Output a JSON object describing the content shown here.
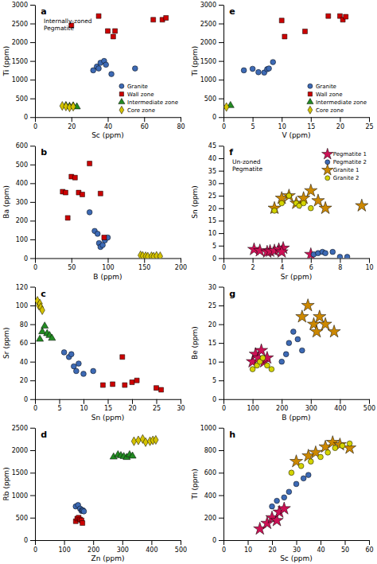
{
  "chart_data": [
    {
      "type": "scatter",
      "title": "a",
      "xlabel": "Sc (ppm)",
      "ylabel": "Ti (ppm)",
      "xlim": [
        0,
        80
      ],
      "ylim": [
        0,
        3000
      ],
      "xticks": [
        0,
        20,
        40,
        60,
        80
      ],
      "yticks": [
        0,
        500,
        1000,
        1500,
        2000,
        2500,
        3000
      ],
      "annotation": "Internally-zoned\nPegmatite",
      "legend": "lower right",
      "series": [
        {
          "name": "Granite",
          "color": "#3d6ab5",
          "marker": "circle",
          "x": [
            32,
            34,
            35,
            36,
            38,
            39,
            42,
            55
          ],
          "values": [
            1250,
            1350,
            1300,
            1450,
            1500,
            1400,
            1150,
            1300
          ]
        },
        {
          "name": "Wall zone",
          "color": "#cc0000",
          "marker": "square",
          "x": [
            20,
            35,
            40,
            43,
            44,
            65,
            70,
            72
          ],
          "values": [
            2450,
            2700,
            2300,
            2150,
            2300,
            2600,
            2600,
            2650
          ]
        },
        {
          "name": "Intermediate zone",
          "color": "#228B22",
          "marker": "triangle",
          "x": [
            17,
            19,
            21,
            23
          ],
          "values": [
            310,
            290,
            300,
            275
          ]
        },
        {
          "name": "Core zone",
          "color": "#d4c200",
          "marker": "diamond",
          "x": [
            15,
            17,
            19,
            21
          ],
          "values": [
            300,
            285,
            260,
            280
          ]
        }
      ]
    },
    {
      "type": "scatter",
      "title": "b",
      "xlabel": "B (ppm)",
      "ylabel": "Ba (ppm)",
      "xlim": [
        0,
        200
      ],
      "ylim": [
        0,
        600
      ],
      "xticks": [
        0,
        50,
        100,
        150,
        200
      ],
      "yticks": [
        0,
        100,
        200,
        300,
        400,
        500,
        600
      ],
      "series": [
        {
          "color": "#3d6ab5",
          "marker": "circle",
          "x": [
            75,
            82,
            86,
            88,
            90,
            93,
            96,
            100
          ],
          "values": [
            245,
            145,
            130,
            80,
            60,
            70,
            95,
            110
          ]
        },
        {
          "color": "#cc0000",
          "marker": "square",
          "x": [
            38,
            42,
            45,
            50,
            55,
            60,
            65,
            75,
            90,
            95
          ],
          "values": [
            355,
            350,
            215,
            435,
            430,
            350,
            340,
            505,
            345,
            110
          ]
        },
        {
          "color": "#d4c200",
          "marker": "diamond",
          "x": [
            145,
            148,
            152,
            155,
            160,
            163,
            167,
            172
          ],
          "values": [
            15,
            12,
            10,
            8,
            10,
            8,
            12,
            10
          ]
        }
      ]
    },
    {
      "type": "scatter",
      "title": "c",
      "xlabel": "Sn (ppm)",
      "ylabel": "Sr (ppm)",
      "xlim": [
        0,
        30
      ],
      "ylim": [
        0,
        120
      ],
      "xticks": [
        0,
        5,
        10,
        15,
        20,
        25,
        30
      ],
      "yticks": [
        0,
        20,
        40,
        60,
        80,
        100,
        120
      ],
      "series": [
        {
          "color": "#3d6ab5",
          "marker": "circle",
          "x": [
            6,
            7,
            7.5,
            8,
            8.5,
            9,
            10,
            12
          ],
          "values": [
            50,
            45,
            48,
            35,
            30,
            38,
            27,
            30
          ]
        },
        {
          "color": "#cc0000",
          "marker": "square",
          "x": [
            14,
            16,
            18,
            18.5,
            20,
            21,
            25,
            26
          ],
          "values": [
            15,
            16,
            45,
            15,
            18,
            20,
            12,
            10
          ]
        },
        {
          "color": "#228B22",
          "marker": "triangle",
          "x": [
            1,
            1.5,
            2,
            2.5,
            3,
            3.5
          ],
          "values": [
            64,
            72,
            78,
            70,
            68,
            65
          ]
        },
        {
          "color": "#d4c200",
          "marker": "diamond",
          "x": [
            0.5,
            0.8,
            1,
            1.2,
            1.5
          ],
          "values": [
            105,
            100,
            102,
            98,
            95
          ]
        }
      ]
    },
    {
      "type": "scatter",
      "title": "d",
      "xlabel": "Zn (ppm)",
      "ylabel": "Rb (ppm)",
      "xlim": [
        0,
        500
      ],
      "ylim": [
        0,
        2500
      ],
      "xticks": [
        0,
        100,
        200,
        300,
        400,
        500
      ],
      "yticks": [
        0,
        500,
        1000,
        1500,
        2000,
        2500
      ],
      "series": [
        {
          "color": "#3d6ab5",
          "marker": "circle",
          "x": [
            140,
            148,
            155,
            160,
            162,
            165,
            168
          ],
          "values": [
            750,
            780,
            700,
            650,
            670,
            660,
            640
          ]
        },
        {
          "color": "#cc0000",
          "marker": "square",
          "x": [
            140,
            145,
            150,
            155,
            160,
            163
          ],
          "values": [
            420,
            480,
            500,
            460,
            440,
            380
          ]
        },
        {
          "color": "#228B22",
          "marker": "triangle",
          "x": [
            270,
            285,
            295,
            305,
            315,
            325,
            335
          ],
          "values": [
            1850,
            1900,
            1880,
            1860,
            1840,
            1900,
            1870
          ]
        },
        {
          "color": "#d4c200",
          "marker": "diamond",
          "x": [
            340,
            355,
            370,
            380,
            395,
            405,
            415
          ],
          "values": [
            2200,
            2220,
            2250,
            2180,
            2200,
            2220,
            2230
          ]
        }
      ]
    },
    {
      "type": "scatter",
      "title": "e",
      "xlabel": "V (ppm)",
      "ylabel": "Ti (ppm)",
      "xlim": [
        0,
        25
      ],
      "ylim": [
        0,
        3000
      ],
      "xticks": [
        0,
        5,
        10,
        15,
        20,
        25
      ],
      "yticks": [
        0,
        500,
        1000,
        1500,
        2000,
        2500,
        3000
      ],
      "legend": "lower right",
      "series": [
        {
          "name": "Granite",
          "color": "#3d6ab5",
          "marker": "circle",
          "x": [
            3.5,
            5,
            6,
            7,
            7.5,
            7.8,
            8.5
          ],
          "values": [
            1250,
            1290,
            1200,
            1190,
            1280,
            1300,
            1470
          ]
        },
        {
          "name": "Wall zone",
          "color": "#cc0000",
          "marker": "square",
          "x": [
            10,
            10.5,
            14,
            18,
            20,
            20.5,
            21
          ],
          "values": [
            2580,
            2150,
            2290,
            2700,
            2700,
            2600,
            2680
          ]
        },
        {
          "name": "Intermediate zone",
          "color": "#228B22",
          "marker": "triangle",
          "x": [
            1.2
          ],
          "values": [
            310
          ]
        },
        {
          "name": "Core zone",
          "color": "#d4c200",
          "marker": "diamond",
          "x": [
            0.5
          ],
          "values": [
            270
          ]
        }
      ]
    },
    {
      "type": "scatter",
      "title": "f",
      "xlabel": "Sr (ppm)",
      "ylabel": "Sn (ppm)",
      "xlim": [
        0,
        10
      ],
      "ylim": [
        0,
        45
      ],
      "xticks": [
        0,
        2,
        4,
        6,
        8,
        10
      ],
      "yticks": [
        0,
        5,
        10,
        15,
        20,
        25,
        30,
        35,
        40,
        45
      ],
      "annotation": "Un-zoned\nPegmatite",
      "legend": "upper right",
      "series": [
        {
          "name": "Pegmatite 1",
          "color": "#cc1155",
          "marker": "star",
          "x": [
            2.1,
            2.5,
            3.0,
            3.2,
            3.5,
            3.8,
            4.1,
            4.0,
            6.0
          ],
          "values": [
            3.5,
            3.0,
            2.5,
            2.8,
            3.0,
            3.5,
            4.0,
            2.5,
            1.5
          ]
        },
        {
          "name": "Pegmatite 2",
          "color": "#3d6ab5",
          "marker": "circle",
          "x": [
            6.2,
            6.5,
            6.8,
            7.0,
            7.5,
            8.0,
            8.5
          ],
          "values": [
            1.5,
            2.0,
            2.5,
            2.0,
            2.5,
            0.5,
            0.5
          ]
        },
        {
          "name": "Granite 1",
          "color": "#cc8800",
          "marker": "star",
          "x": [
            3.5,
            4.0,
            4.5,
            5.0,
            5.5,
            6.0,
            6.5,
            7.0,
            9.5
          ],
          "values": [
            20,
            24,
            25,
            22,
            24,
            27,
            23,
            20,
            21
          ]
        },
        {
          "name": "Granite 2",
          "color": "#d4d400",
          "marker": "circle",
          "x": [
            3.5,
            4.0,
            4.5,
            5.0,
            5.2,
            5.5,
            6.0
          ],
          "values": [
            19,
            22,
            25,
            22,
            21,
            22,
            20
          ]
        }
      ]
    },
    {
      "type": "scatter",
      "title": "g",
      "xlabel": "B (ppm)",
      "ylabel": "Be (ppm)",
      "xlim": [
        0,
        500
      ],
      "ylim": [
        0,
        30
      ],
      "xticks": [
        0,
        100,
        200,
        300,
        400,
        500
      ],
      "yticks": [
        0,
        5,
        10,
        15,
        20,
        25,
        30
      ],
      "series": [
        {
          "color": "#cc1155",
          "marker": "star",
          "x": [
            100,
            110,
            120,
            130,
            140,
            150
          ],
          "values": [
            10,
            12,
            11,
            13,
            10,
            11
          ]
        },
        {
          "color": "#3d6ab5",
          "marker": "circle",
          "x": [
            200,
            215,
            225,
            240,
            255,
            270
          ],
          "values": [
            10,
            12,
            15,
            18,
            16,
            13
          ]
        },
        {
          "color": "#cc8800",
          "marker": "star",
          "x": [
            270,
            290,
            310,
            320,
            330,
            350,
            380
          ],
          "values": [
            22,
            25,
            20,
            18,
            22,
            20,
            18
          ]
        },
        {
          "color": "#d4d400",
          "marker": "circle",
          "x": [
            100,
            115,
            125,
            135,
            150,
            165
          ],
          "values": [
            8,
            9,
            10,
            11,
            9,
            8
          ]
        }
      ]
    },
    {
      "type": "scatter",
      "title": "h",
      "xlabel": "Sc (ppm)",
      "ylabel": "Tl (ppm)",
      "xlim": [
        0,
        60
      ],
      "ylim": [
        0,
        1000
      ],
      "xticks": [
        0,
        10,
        20,
        30,
        40,
        50,
        60
      ],
      "yticks": [
        0,
        200,
        400,
        600,
        800,
        1000
      ],
      "series": [
        {
          "color": "#cc1155",
          "marker": "star",
          "x": [
            15,
            18,
            20,
            22,
            23,
            25
          ],
          "values": [
            100,
            150,
            200,
            175,
            250,
            280
          ]
        },
        {
          "color": "#3d6ab5",
          "marker": "circle",
          "x": [
            20,
            22,
            25,
            27,
            30,
            33,
            35
          ],
          "values": [
            300,
            350,
            380,
            430,
            500,
            550,
            580
          ]
        },
        {
          "color": "#cc8800",
          "marker": "star",
          "x": [
            30,
            35,
            38,
            42,
            45,
            48,
            52
          ],
          "values": [
            700,
            750,
            780,
            830,
            870,
            850,
            820
          ]
        },
        {
          "color": "#d4d400",
          "marker": "circle",
          "x": [
            28,
            32,
            36,
            40,
            43,
            46,
            49,
            52
          ],
          "values": [
            600,
            660,
            700,
            740,
            780,
            820,
            840,
            860
          ]
        }
      ]
    }
  ]
}
